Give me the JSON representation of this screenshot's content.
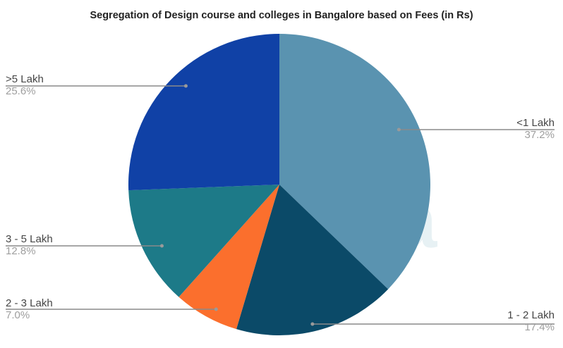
{
  "chart_data": {
    "type": "pie",
    "title": "Segregation of  Design course and colleges in Bangalore based on Fees (in Rs)",
    "categories": [
      "<1 Lakh",
      "1 - 2 Lakh",
      "2 - 3 Lakh",
      "3 - 5 Lakh",
      ">5 Lakh"
    ],
    "values": [
      37.2,
      17.4,
      7.0,
      12.8,
      25.6
    ],
    "labels": [
      "37.2%",
      "17.4%",
      "7.0%",
      "12.8%",
      "25.6%"
    ],
    "colors": [
      "#5a93b0",
      "#0b4a68",
      "#fb6f2d",
      "#1d7a88",
      "#1041a6"
    ],
    "start_angle_deg": 0,
    "direction": "clockwise",
    "legend_position": "labeled-callouts",
    "grid": false
  },
  "watermark": "iksha"
}
